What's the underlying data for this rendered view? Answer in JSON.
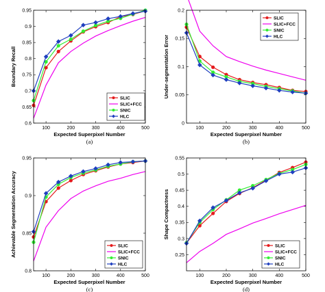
{
  "series_colors": {
    "SLIC": "#e41a1c",
    "SLIC+FCC": "#ee00ee",
    "SNIC": "#33ee33",
    "HLC": "#1f3fbf"
  },
  "series_markers": {
    "SLIC": "circle",
    "SLIC+FCC": "none",
    "SNIC": "circle",
    "HLC": "diamond"
  },
  "chart_data": [
    {
      "type": "line",
      "panel_label": "(a)",
      "xlabel": "Expected Superpixel Number",
      "ylabel": "Boundary Recall",
      "xlim": [
        50,
        500
      ],
      "ylim": [
        0.6,
        0.95
      ],
      "xticks": [
        "100",
        "200",
        "300",
        "400",
        "500"
      ],
      "yticks": [
        "0.6",
        "0.65",
        "0.7",
        "0.75",
        "0.8",
        "0.85",
        "0.9",
        "0.95"
      ],
      "legend": "bottom-right",
      "x": [
        50,
        100,
        150,
        200,
        250,
        300,
        350,
        400,
        450,
        500
      ],
      "series": [
        {
          "name": "SLIC",
          "values": [
            0.655,
            0.772,
            0.822,
            0.855,
            0.883,
            0.899,
            0.912,
            0.93,
            0.937,
            0.948
          ]
        },
        {
          "name": "SLIC+FCC",
          "values": [
            0.615,
            0.718,
            0.787,
            0.822,
            0.848,
            0.87,
            0.887,
            0.902,
            0.916,
            0.928
          ]
        },
        {
          "name": "SNIC",
          "values": [
            0.67,
            0.79,
            0.84,
            0.86,
            0.885,
            0.903,
            0.916,
            0.925,
            0.938,
            0.95
          ]
        },
        {
          "name": "HLC",
          "values": [
            0.7,
            0.806,
            0.853,
            0.872,
            0.904,
            0.912,
            0.924,
            0.931,
            0.94,
            0.947
          ]
        }
      ]
    },
    {
      "type": "line",
      "panel_label": "(b)",
      "xlabel": "Expected Superpixel Number",
      "ylabel": "Under-segmentation Error",
      "xlim": [
        50,
        500
      ],
      "ylim": [
        0,
        0.2
      ],
      "xticks": [
        "100",
        "200",
        "300",
        "400",
        "500"
      ],
      "yticks": [
        "0",
        "0.05",
        "0.1",
        "0.15",
        "0.2"
      ],
      "legend": "top-right",
      "x": [
        50,
        100,
        150,
        200,
        250,
        300,
        350,
        400,
        450,
        500
      ],
      "series": [
        {
          "name": "SLIC",
          "values": [
            0.17,
            0.118,
            0.099,
            0.086,
            0.077,
            0.072,
            0.068,
            0.063,
            0.058,
            0.056
          ]
        },
        {
          "name": "SLIC+FCC",
          "values": [
            0.228,
            0.163,
            0.137,
            0.118,
            0.109,
            0.101,
            0.094,
            0.088,
            0.082,
            0.076
          ]
        },
        {
          "name": "SNIC",
          "values": [
            0.175,
            0.11,
            0.09,
            0.082,
            0.074,
            0.07,
            0.065,
            0.061,
            0.057,
            0.053
          ]
        },
        {
          "name": "HLC",
          "values": [
            0.16,
            0.103,
            0.085,
            0.077,
            0.071,
            0.066,
            0.062,
            0.058,
            0.055,
            0.053
          ]
        }
      ]
    },
    {
      "type": "line",
      "panel_label": "(c)",
      "xlabel": "Expected Superpixel Number",
      "ylabel": "Achievable Segmentation Accuracy",
      "xlim": [
        50,
        500
      ],
      "ylim": [
        0.8,
        0.95
      ],
      "xticks": [
        "100",
        "200",
        "300",
        "400",
        "500"
      ],
      "yticks": [
        "0.8",
        "0.85",
        "0.9",
        "0.95"
      ],
      "legend": "bottom-right",
      "x": [
        50,
        100,
        150,
        200,
        250,
        300,
        350,
        400,
        450,
        500
      ],
      "series": [
        {
          "name": "SLIC",
          "values": [
            0.845,
            0.892,
            0.91,
            0.92,
            0.928,
            0.933,
            0.938,
            0.942,
            0.944,
            0.946
          ]
        },
        {
          "name": "SLIC+FCC",
          "values": [
            0.813,
            0.858,
            0.88,
            0.896,
            0.906,
            0.913,
            0.919,
            0.923,
            0.928,
            0.932
          ]
        },
        {
          "name": "SNIC",
          "values": [
            0.838,
            0.898,
            0.915,
            0.924,
            0.93,
            0.934,
            0.939,
            0.942,
            0.945,
            0.946
          ]
        },
        {
          "name": "HLC",
          "values": [
            0.852,
            0.903,
            0.918,
            0.926,
            0.932,
            0.936,
            0.941,
            0.944,
            0.945,
            0.946
          ]
        }
      ]
    },
    {
      "type": "line",
      "panel_label": "(d)",
      "xlabel": "Expected Superpixel Number",
      "ylabel": "Shape Compactness",
      "xlim": [
        50,
        500
      ],
      "ylim": [
        0.2,
        0.55
      ],
      "xticks": [
        "100",
        "200",
        "300",
        "400",
        "500"
      ],
      "yticks": [
        "0.25",
        "0.3",
        "0.35",
        "0.4",
        "0.45",
        "0.5",
        "0.55"
      ],
      "legend": "bottom-right",
      "x": [
        50,
        100,
        150,
        200,
        250,
        300,
        350,
        400,
        450,
        500
      ],
      "series": [
        {
          "name": "SLIC",
          "values": [
            0.286,
            0.34,
            0.378,
            0.415,
            0.44,
            0.458,
            0.481,
            0.505,
            0.52,
            0.537
          ]
        },
        {
          "name": "SLIC+FCC",
          "values": [
            0.225,
            0.26,
            0.285,
            0.313,
            0.33,
            0.348,
            0.362,
            0.377,
            0.39,
            0.403
          ]
        },
        {
          "name": "SNIC",
          "values": [
            0.287,
            0.35,
            0.39,
            0.42,
            0.45,
            0.464,
            0.483,
            0.502,
            0.514,
            0.53
          ]
        },
        {
          "name": "HLC",
          "values": [
            0.285,
            0.355,
            0.396,
            0.418,
            0.442,
            0.456,
            0.479,
            0.5,
            0.506,
            0.519
          ]
        }
      ]
    }
  ]
}
